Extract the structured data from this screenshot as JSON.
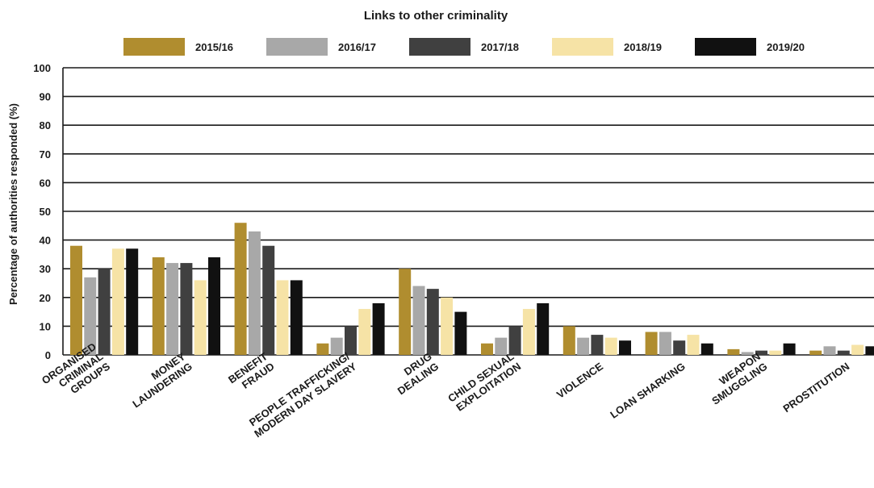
{
  "chart_data": {
    "type": "bar",
    "title": "Links to other criminality",
    "xlabel": "",
    "ylabel": "Percentage of authorities responded (%)",
    "ylim": [
      0,
      100
    ],
    "yticks": [
      0,
      10,
      20,
      30,
      40,
      50,
      60,
      70,
      80,
      90,
      100
    ],
    "grid": true,
    "legend_position": "top",
    "categories": [
      [
        "ORGANISED",
        "CRIMINAL",
        "GROUPS"
      ],
      [
        "MONEY",
        "LAUNDERING"
      ],
      [
        "BENEFIT",
        "FRAUD"
      ],
      [
        "PEOPLE TRAFFICKING/",
        "MODERN DAY SLAVERY"
      ],
      [
        "DRUG",
        "DEALING"
      ],
      [
        "CHILD SEXUAL",
        "EXPLOITATION"
      ],
      [
        "VIOLENCE"
      ],
      [
        "LOAN SHARKING"
      ],
      [
        "WEAPON",
        "SMUGGLING"
      ],
      [
        "PROSTITUTION"
      ]
    ],
    "series": [
      {
        "name": "2015/16",
        "color": "#b08d2f",
        "values": [
          38,
          34,
          46,
          4,
          30,
          4,
          10,
          8,
          2,
          1.5
        ]
      },
      {
        "name": "2016/17",
        "color": "#a8a8a8",
        "values": [
          27,
          32,
          43,
          6,
          24,
          6,
          6,
          8,
          1,
          3
        ]
      },
      {
        "name": "2017/18",
        "color": "#404040",
        "values": [
          30,
          32,
          38,
          10,
          23,
          10,
          7,
          5,
          1.5,
          1.5
        ]
      },
      {
        "name": "2018/19",
        "color": "#f6e3a6",
        "values": [
          37,
          26,
          26,
          16,
          20,
          16,
          6,
          7,
          1.5,
          3.5
        ]
      },
      {
        "name": "2019/20",
        "color": "#111111",
        "values": [
          37,
          34,
          26,
          18,
          15,
          18,
          5,
          4,
          4,
          3
        ]
      }
    ]
  }
}
